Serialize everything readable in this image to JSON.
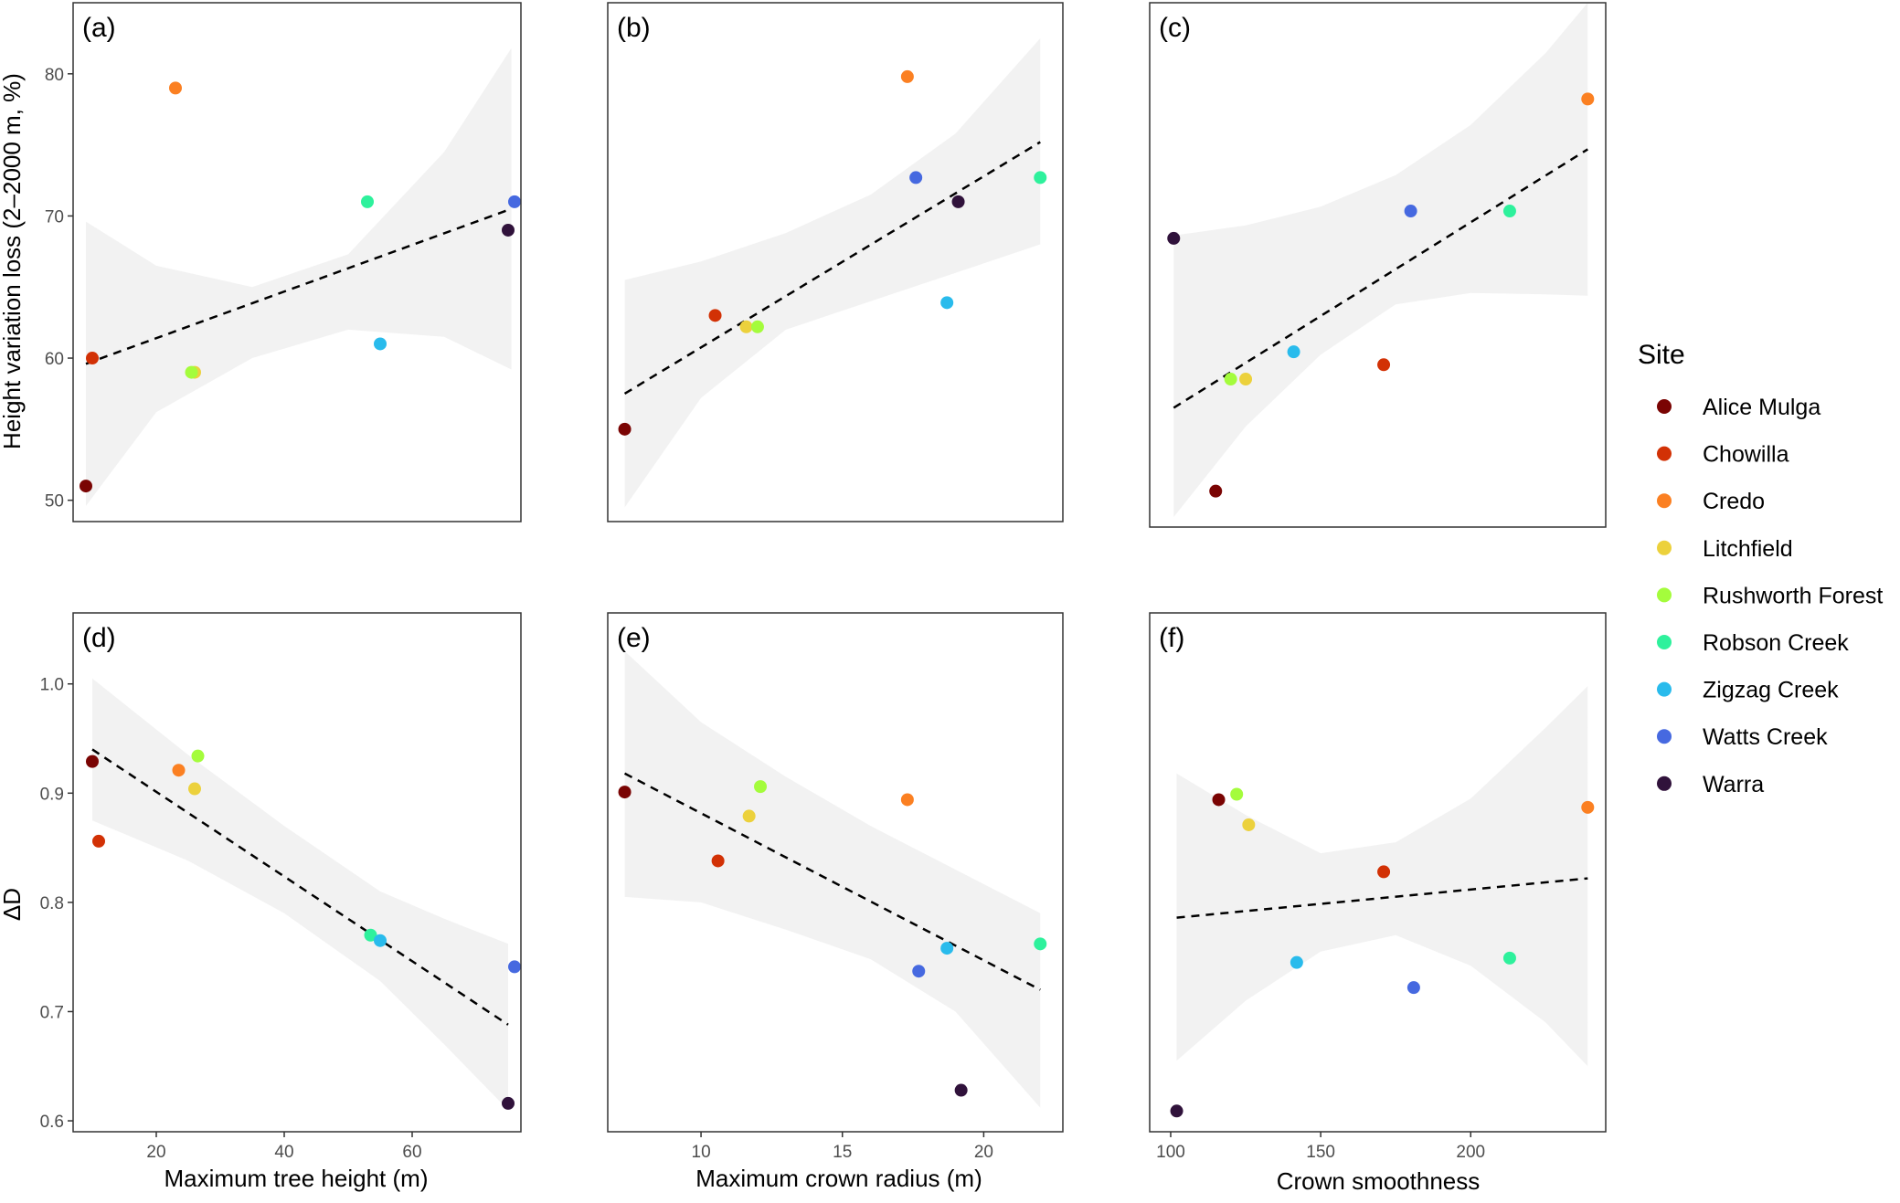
{
  "colors": {
    "Alice Mulga": "#7a0403",
    "Chowilla": "#d23105",
    "Credo": "#fb8022",
    "Litchfield": "#ecd13c",
    "Rushworth Forest": "#a4fc3c",
    "Robson Creek": "#2ef19c",
    "Zigzag Creek": "#29bbec",
    "Watts Creek": "#4669e0",
    "Warra": "#30123b",
    "band": "#ebebeb",
    "trend": "#000000"
  },
  "legend": {
    "title": "Site",
    "entries": [
      "Alice Mulga",
      "Chowilla",
      "Credo",
      "Litchfield",
      "Rushworth Forest",
      "Robson Creek",
      "Zigzag Creek",
      "Watts Creek",
      "Warra"
    ]
  },
  "chart_data": [
    {
      "type": "scatter",
      "panel": "(a)",
      "xlabel": "",
      "ylabel": "Height variation loss (2–2000 m, %)",
      "xlim": [
        7,
        77
      ],
      "ylim": [
        48.5,
        85
      ],
      "xticks": [],
      "yticks": [
        50,
        60,
        70,
        80
      ],
      "ytick_labels": [
        "50",
        "60",
        "70",
        "80"
      ],
      "trend": {
        "x": [
          9,
          75.5
        ],
        "y": [
          59.6,
          70.5
        ]
      },
      "band": {
        "x": [
          9,
          20,
          35,
          50,
          65,
          75.5
        ],
        "upper": [
          69.6,
          66.5,
          65.0,
          67.3,
          74.5,
          81.8
        ],
        "lower": [
          49.6,
          56.2,
          60.0,
          62.0,
          61.5,
          59.2
        ]
      },
      "points": [
        {
          "site": "Alice Mulga",
          "x": 9,
          "y": 51
        },
        {
          "site": "Chowilla",
          "x": 10,
          "y": 60
        },
        {
          "site": "Credo",
          "x": 23,
          "y": 79
        },
        {
          "site": "Litchfield",
          "x": 26,
          "y": 59
        },
        {
          "site": "Rushworth Forest",
          "x": 25.5,
          "y": 59
        },
        {
          "site": "Robson Creek",
          "x": 53,
          "y": 71
        },
        {
          "site": "Zigzag Creek",
          "x": 55,
          "y": 61
        },
        {
          "site": "Watts Creek",
          "x": 76,
          "y": 71
        },
        {
          "site": "Warra",
          "x": 75,
          "y": 69
        }
      ]
    },
    {
      "type": "scatter",
      "panel": "(b)",
      "xlabel": "",
      "ylabel": "",
      "xlim": [
        6.7,
        22.8
      ],
      "ylim": [
        48.5,
        85
      ],
      "xticks": [],
      "yticks": [],
      "trend": {
        "x": [
          7.3,
          22
        ],
        "y": [
          57.5,
          75.2
        ]
      },
      "band": {
        "x": [
          7.3,
          10,
          13,
          16,
          19,
          22
        ],
        "upper": [
          65.5,
          66.8,
          68.8,
          71.5,
          75.8,
          82.5
        ],
        "lower": [
          49.5,
          57.2,
          62.0,
          64.0,
          66.0,
          68.0
        ]
      },
      "points": [
        {
          "site": "Alice Mulga",
          "x": 7.3,
          "y": 55
        },
        {
          "site": "Chowilla",
          "x": 10.5,
          "y": 63
        },
        {
          "site": "Credo",
          "x": 17.3,
          "y": 79.8
        },
        {
          "site": "Litchfield",
          "x": 11.6,
          "y": 62.2
        },
        {
          "site": "Rushworth Forest",
          "x": 12,
          "y": 62.2
        },
        {
          "site": "Robson Creek",
          "x": 22,
          "y": 72.7
        },
        {
          "site": "Zigzag Creek",
          "x": 18.7,
          "y": 63.9
        },
        {
          "site": "Watts Creek",
          "x": 17.6,
          "y": 72.7
        },
        {
          "site": "Warra",
          "x": 19.1,
          "y": 71
        }
      ]
    },
    {
      "type": "scatter",
      "panel": "(c)",
      "xlabel": "",
      "ylabel": "",
      "xlim": [
        93,
        245
      ],
      "ylim": [
        48.5,
        85
      ],
      "xticks": [],
      "yticks": [],
      "trend": {
        "x": [
          101,
          239
        ],
        "y": [
          56.8,
          74.8
        ]
      },
      "band": {
        "x": [
          101,
          125,
          150,
          175,
          200,
          225,
          239
        ],
        "upper": [
          68.8,
          69.5,
          70.8,
          73.0,
          76.5,
          81.5,
          85.0
        ],
        "lower": [
          49.2,
          55.5,
          60.5,
          64.0,
          64.8,
          64.7,
          64.6
        ]
      },
      "points": [
        {
          "site": "Alice Mulga",
          "x": 115,
          "y": 51
        },
        {
          "site": "Chowilla",
          "x": 171,
          "y": 59.8
        },
        {
          "site": "Credo",
          "x": 239,
          "y": 78.3
        },
        {
          "site": "Litchfield",
          "x": 125,
          "y": 58.8
        },
        {
          "site": "Rushworth Forest",
          "x": 120,
          "y": 58.8
        },
        {
          "site": "Robson Creek",
          "x": 213,
          "y": 70.5
        },
        {
          "site": "Zigzag Creek",
          "x": 141,
          "y": 60.7
        },
        {
          "site": "Watts Creek",
          "x": 180,
          "y": 70.5
        },
        {
          "site": "Warra",
          "x": 101,
          "y": 68.6
        }
      ]
    },
    {
      "type": "scatter",
      "panel": "(d)",
      "xlabel": "Maximum tree height (m)",
      "ylabel": "ΔD",
      "xlim": [
        7,
        77
      ],
      "ylim": [
        0.59,
        1.065
      ],
      "xticks": [
        20,
        40,
        60
      ],
      "xtick_labels": [
        "20",
        "40",
        "60"
      ],
      "yticks": [
        0.6,
        0.7,
        0.8,
        0.9,
        1.0
      ],
      "ytick_labels": [
        "0.6",
        "0.7",
        "0.8",
        "0.9",
        "1.0"
      ],
      "trend": {
        "x": [
          10,
          75
        ],
        "y": [
          0.94,
          0.688
        ]
      },
      "band": {
        "x": [
          10,
          25,
          40,
          55,
          65,
          75
        ],
        "upper": [
          1.005,
          0.935,
          0.87,
          0.81,
          0.785,
          0.762
        ],
        "lower": [
          0.875,
          0.838,
          0.79,
          0.728,
          0.67,
          0.61
        ]
      },
      "points": [
        {
          "site": "Alice Mulga",
          "x": 10,
          "y": 0.929
        },
        {
          "site": "Chowilla",
          "x": 11,
          "y": 0.856
        },
        {
          "site": "Credo",
          "x": 23.5,
          "y": 0.921
        },
        {
          "site": "Litchfield",
          "x": 26,
          "y": 0.904
        },
        {
          "site": "Rushworth Forest",
          "x": 26.5,
          "y": 0.934
        },
        {
          "site": "Robson Creek",
          "x": 53.5,
          "y": 0.77
        },
        {
          "site": "Zigzag Creek",
          "x": 55,
          "y": 0.765
        },
        {
          "site": "Watts Creek",
          "x": 76,
          "y": 0.741
        },
        {
          "site": "Warra",
          "x": 75,
          "y": 0.616
        }
      ]
    },
    {
      "type": "scatter",
      "panel": "(e)",
      "xlabel": "Maximum crown radius (m)",
      "ylabel": "",
      "xlim": [
        6.7,
        22.8
      ],
      "ylim": [
        0.59,
        1.065
      ],
      "xticks": [
        10,
        15,
        20
      ],
      "xtick_labels": [
        "10",
        "15",
        "20"
      ],
      "yticks": [],
      "trend": {
        "x": [
          7.3,
          22
        ],
        "y": [
          0.918,
          0.72
        ]
      },
      "band": {
        "x": [
          7.3,
          10,
          13,
          16,
          19,
          22
        ],
        "upper": [
          1.03,
          0.965,
          0.915,
          0.87,
          0.83,
          0.79
        ],
        "lower": [
          0.805,
          0.8,
          0.775,
          0.748,
          0.7,
          0.612
        ]
      },
      "points": [
        {
          "site": "Alice Mulga",
          "x": 7.3,
          "y": 0.901
        },
        {
          "site": "Chowilla",
          "x": 10.6,
          "y": 0.838
        },
        {
          "site": "Credo",
          "x": 17.3,
          "y": 0.894
        },
        {
          "site": "Litchfield",
          "x": 11.7,
          "y": 0.879
        },
        {
          "site": "Rushworth Forest",
          "x": 12.1,
          "y": 0.906
        },
        {
          "site": "Robson Creek",
          "x": 22,
          "y": 0.762
        },
        {
          "site": "Zigzag Creek",
          "x": 18.7,
          "y": 0.758
        },
        {
          "site": "Watts Creek",
          "x": 17.7,
          "y": 0.737
        },
        {
          "site": "Warra",
          "x": 19.2,
          "y": 0.628
        }
      ]
    },
    {
      "type": "scatter",
      "panel": "(f)",
      "xlabel": "Crown smoothness",
      "ylabel": "",
      "xlim": [
        93,
        245
      ],
      "ylim": [
        0.59,
        1.065
      ],
      "xticks": [
        100,
        150,
        200
      ],
      "xtick_labels": [
        "100",
        "150",
        "200"
      ],
      "yticks": [],
      "trend": {
        "x": [
          102,
          239
        ],
        "y": [
          0.786,
          0.822
        ]
      },
      "band": {
        "x": [
          102,
          125,
          150,
          175,
          200,
          225,
          239
        ],
        "upper": [
          0.918,
          0.88,
          0.845,
          0.855,
          0.895,
          0.96,
          0.998
        ],
        "lower": [
          0.655,
          0.71,
          0.755,
          0.77,
          0.742,
          0.69,
          0.65
        ]
      },
      "points": [
        {
          "site": "Alice Mulga",
          "x": 116,
          "y": 0.894
        },
        {
          "site": "Chowilla",
          "x": 171,
          "y": 0.828
        },
        {
          "site": "Credo",
          "x": 239,
          "y": 0.887
        },
        {
          "site": "Litchfield",
          "x": 126,
          "y": 0.871
        },
        {
          "site": "Rushworth Forest",
          "x": 122,
          "y": 0.899
        },
        {
          "site": "Robson Creek",
          "x": 213,
          "y": 0.749
        },
        {
          "site": "Zigzag Creek",
          "x": 142,
          "y": 0.745
        },
        {
          "site": "Watts Creek",
          "x": 181,
          "y": 0.722
        },
        {
          "site": "Warra",
          "x": 102,
          "y": 0.609
        }
      ]
    }
  ]
}
